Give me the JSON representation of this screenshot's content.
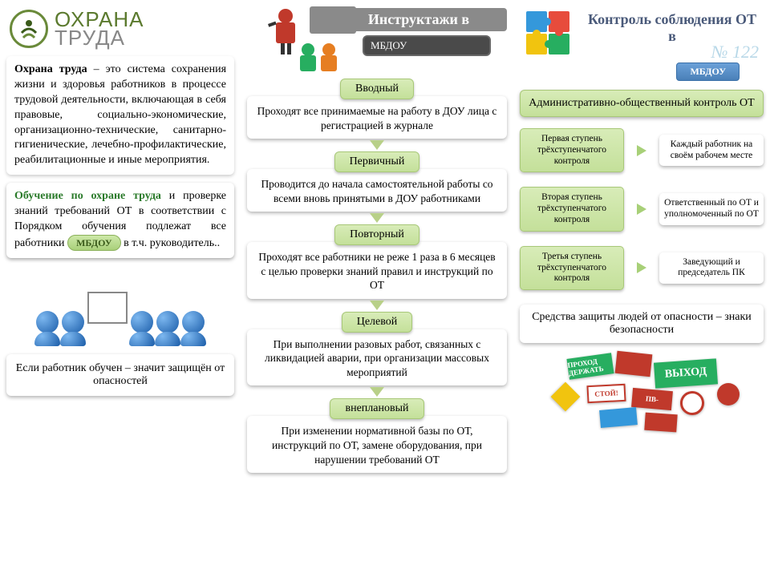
{
  "logo": {
    "line1": "ОХРАНА",
    "line2": "ТРУДА"
  },
  "definition": {
    "title": "Охрана труда",
    "body": "– это система сохранения жизни и здоровья работников в процессе трудовой деятельности, включающая в себя правовые, социально-экономические, организационно-технические, санитарно-гигиенические, лечебно-профилактические, реабилитационные и иные мероприятия."
  },
  "training": {
    "title": "Обучение по охране труда",
    "body_before": " и проверке знаний требований ОТ в соответствии с Порядком обучения подлежат все работники ",
    "pill": "МБДОУ",
    "body_after": " в т.ч. руководитель.."
  },
  "motto": "Если работник обучен – значит защищён от опасностей",
  "mid": {
    "title": "Инструктажи в",
    "sub": "МБДОУ",
    "items": [
      {
        "label": "Вводный",
        "desc": "Проходят все принимаемые на работу в ДОУ лица с регистрацией в журнале"
      },
      {
        "label": "Первичный",
        "desc": "Проводится до начала самостоятельной работы со всеми вновь принятыми в ДОУ работниками"
      },
      {
        "label": "Повторный",
        "desc": "Проходят все работники не реже 1 раза в 6 месяцев с целью проверки знаний правил и инструкций по ОТ"
      },
      {
        "label": "Целевой",
        "desc": "При выполнении разовых работ, связанных с ликвидацией аварии, при организации массовых мероприятий"
      },
      {
        "label": "внеплановый",
        "desc": "При изменении нормативной базы по ОТ, инструкций по ОТ, замене оборудования, при нарушении требований ОТ"
      }
    ]
  },
  "right": {
    "title": "Контроль соблюдения ОТ в",
    "ghost": "№ 122",
    "mbdou": "МБДОУ",
    "admin": "Административно-общественный контроль ОТ",
    "steps": [
      {
        "left": "Первая ступень трёхступенчатого контроля",
        "right": "Каждый работник на своём рабочем месте"
      },
      {
        "left": "Вторая ступень трёхступенчатого контроля",
        "right": "Ответственный по ОТ и уполномоченный по ОТ"
      },
      {
        "left": "Третья ступень трёхступенчатого контроля",
        "right": "Заведующий и председатель ПК"
      }
    ],
    "safety": "Средства защиты людей от опасности – знаки безопасности",
    "signs": {
      "exit": "ВЫХОД",
      "stop": "СТОЙ!",
      "pv": "ПВ-",
      "prohod": "ПРОХОД ДЕРЖАТЬ"
    }
  },
  "colors": {
    "green_light": "#d8ecb8",
    "green_dark": "#a8c878",
    "header_gray": "#8a8a8a",
    "blue": "#4a80b8"
  }
}
